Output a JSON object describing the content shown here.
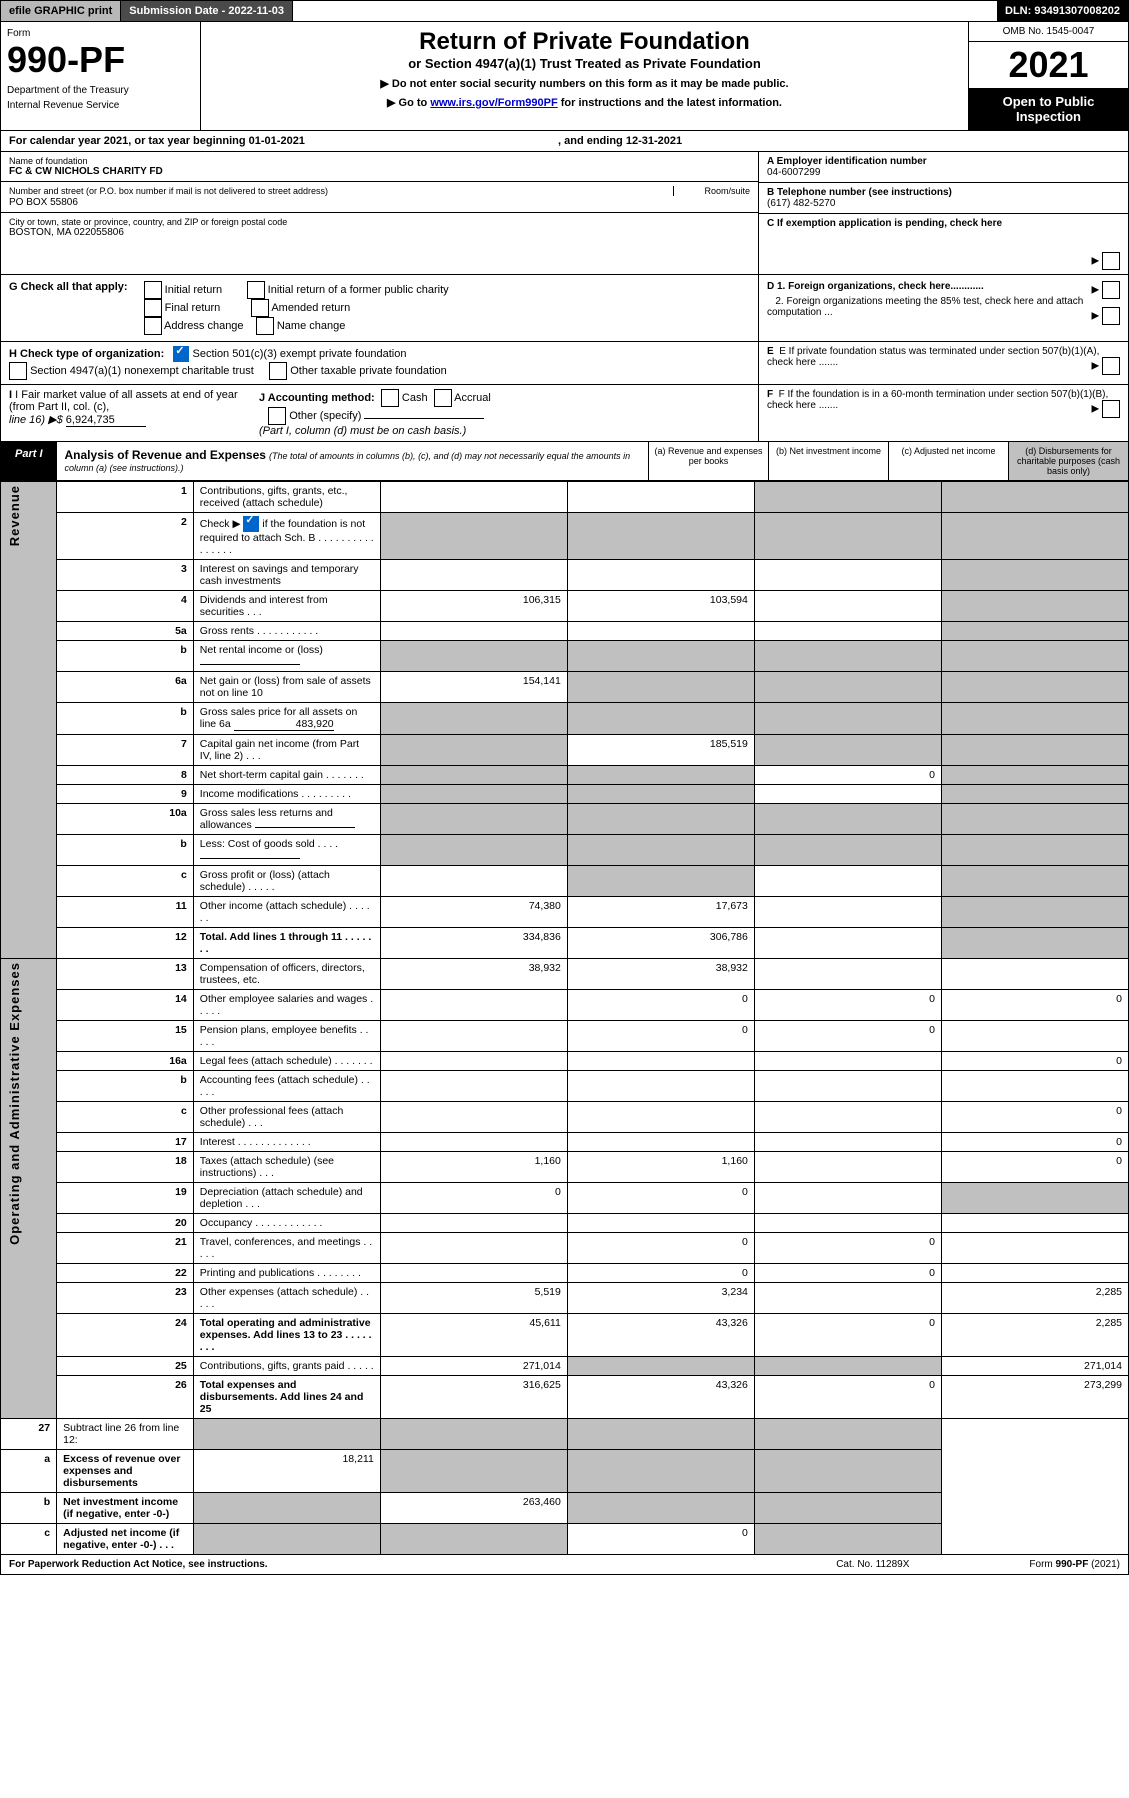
{
  "topbar": {
    "efile": "efile GRAPHIC print",
    "subdate_label": "Submission Date - ",
    "subdate": "2022-11-03",
    "dln_label": "DLN: ",
    "dln": "93491307008202"
  },
  "header": {
    "form_label": "Form",
    "form_num": "990-PF",
    "dept1": "Department of the Treasury",
    "dept2": "Internal Revenue Service",
    "title": "Return of Private Foundation",
    "subtitle": "or Section 4947(a)(1) Trust Treated as Private Foundation",
    "note1": "▶ Do not enter social security numbers on this form as it may be made public.",
    "note2_pre": "▶ Go to ",
    "note2_link": "www.irs.gov/Form990PF",
    "note2_post": " for instructions and the latest information.",
    "omb": "OMB No. 1545-0047",
    "year": "2021",
    "open_pub": "Open to Public Inspection"
  },
  "calyear": {
    "pre": "For calendar year 2021, or tax year beginning ",
    "begin": "01-01-2021",
    "mid": ", and ending ",
    "end": "12-31-2021"
  },
  "info": {
    "name_label": "Name of foundation",
    "name": "FC & CW NICHOLS CHARITY FD",
    "addr_label": "Number and street (or P.O. box number if mail is not delivered to street address)",
    "room_label": "Room/suite",
    "addr": "PO BOX 55806",
    "city_label": "City or town, state or province, country, and ZIP or foreign postal code",
    "city": "BOSTON, MA  022055806",
    "a_label": "A Employer identification number",
    "a_val": "04-6007299",
    "b_label": "B Telephone number (see instructions)",
    "b_val": "(617) 482-5270",
    "c_label": "C If exemption application is pending, check here"
  },
  "g": {
    "label": "G Check all that apply:",
    "o1": "Initial return",
    "o2": "Final return",
    "o3": "Address change",
    "o4": "Initial return of a former public charity",
    "o5": "Amended return",
    "o6": "Name change",
    "d1": "D 1. Foreign organizations, check here............",
    "d2": "2. Foreign organizations meeting the 85% test, check here and attach computation ..."
  },
  "h": {
    "label": "H Check type of organization:",
    "o1": "Section 501(c)(3) exempt private foundation",
    "o2": "Section 4947(a)(1) nonexempt charitable trust",
    "o3": "Other taxable private foundation",
    "e": "E  If private foundation status was terminated under section 507(b)(1)(A), check here ......."
  },
  "i": {
    "label": "I Fair market value of all assets at end of year (from Part II, col. (c),",
    "line": "line 16) ▶$ ",
    "val": "6,924,735",
    "j_label": "J Accounting method:",
    "j1": "Cash",
    "j2": "Accrual",
    "j3": "Other (specify)",
    "j_note": "(Part I, column (d) must be on cash basis.)",
    "f": "F  If the foundation is in a 60-month termination under section 507(b)(1)(B), check here ......."
  },
  "part1": {
    "badge": "Part I",
    "title": "Analysis of Revenue and Expenses",
    "note": "(The total of amounts in columns (b), (c), and (d) may not necessarily equal the amounts in column (a) (see instructions).)",
    "col_a": "(a)   Revenue and expenses per books",
    "col_b": "(b)   Net investment income",
    "col_c": "(c)   Adjusted net income",
    "col_d": "(d)   Disbursements for charitable purposes (cash basis only)"
  },
  "sidelabels": {
    "rev": "Revenue",
    "exp": "Operating and Administrative Expenses"
  },
  "rows": [
    {
      "n": "1",
      "d": "Contributions, gifts, grants, etc., received (attach schedule)",
      "a": "",
      "b": "",
      "c": "g",
      "dd": "g"
    },
    {
      "n": "2",
      "d": "Check ▶  ☑  if the foundation is not required to attach Sch. B  . . . . . . . . . . . . . . . .",
      "a": "g",
      "b": "g",
      "c": "g",
      "dd": "g",
      "checked": true
    },
    {
      "n": "3",
      "d": "Interest on savings and temporary cash investments",
      "a": "",
      "b": "",
      "c": "",
      "dd": "g"
    },
    {
      "n": "4",
      "d": "Dividends and interest from securities  .  .  .",
      "a": "106,315",
      "b": "103,594",
      "c": "",
      "dd": "g"
    },
    {
      "n": "5a",
      "d": "Gross rents  .  .  .  .  .  .  .  .  .  .  .",
      "a": "",
      "b": "",
      "c": "",
      "dd": "g"
    },
    {
      "n": "b",
      "d": "Net rental income or (loss)  ",
      "a": "g",
      "b": "g",
      "c": "g",
      "dd": "g",
      "ul": true
    },
    {
      "n": "6a",
      "d": "Net gain or (loss) from sale of assets not on line 10",
      "a": "154,141",
      "b": "g",
      "c": "g",
      "dd": "g"
    },
    {
      "n": "b",
      "d": "Gross sales price for all assets on line 6a",
      "a": "g",
      "b": "g",
      "c": "g",
      "dd": "g",
      "ul": true,
      "ulv": "483,920"
    },
    {
      "n": "7",
      "d": "Capital gain net income (from Part IV, line 2)  .  .  .",
      "a": "g",
      "b": "185,519",
      "c": "g",
      "dd": "g"
    },
    {
      "n": "8",
      "d": "Net short-term capital gain  .  .  .  .  .  .  .",
      "a": "g",
      "b": "g",
      "c": "0",
      "dd": "g"
    },
    {
      "n": "9",
      "d": "Income modifications  .  .  .  .  .  .  .  .  .",
      "a": "g",
      "b": "g",
      "c": "",
      "dd": "g"
    },
    {
      "n": "10a",
      "d": "Gross sales less returns and allowances",
      "a": "g",
      "b": "g",
      "c": "g",
      "dd": "g",
      "ul": true
    },
    {
      "n": "b",
      "d": "Less: Cost of goods sold  .  .  .  .",
      "a": "g",
      "b": "g",
      "c": "g",
      "dd": "g",
      "ul": true
    },
    {
      "n": "c",
      "d": "Gross profit or (loss) (attach schedule)  .  .  .  .  .",
      "a": "",
      "b": "g",
      "c": "",
      "dd": "g"
    },
    {
      "n": "11",
      "d": "Other income (attach schedule)  .  .  .  .  .  .",
      "a": "74,380",
      "b": "17,673",
      "c": "",
      "dd": "g"
    },
    {
      "n": "12",
      "d": "Total. Add lines 1 through 11  .  .  .  .  .  .  .",
      "a": "334,836",
      "b": "306,786",
      "c": "",
      "dd": "g",
      "bold": true
    }
  ],
  "exprows": [
    {
      "n": "13",
      "d": "Compensation of officers, directors, trustees, etc.",
      "a": "38,932",
      "b": "38,932",
      "c": "",
      "dd": ""
    },
    {
      "n": "14",
      "d": "Other employee salaries and wages  .  .  .  .  .",
      "a": "",
      "b": "0",
      "c": "0",
      "dd": "0"
    },
    {
      "n": "15",
      "d": "Pension plans, employee benefits  .  .  .  .  .",
      "a": "",
      "b": "0",
      "c": "0",
      "dd": ""
    },
    {
      "n": "16a",
      "d": "Legal fees (attach schedule)  .  .  .  .  .  .  .",
      "a": "",
      "b": "",
      "c": "",
      "dd": "0"
    },
    {
      "n": "b",
      "d": "Accounting fees (attach schedule)  .  .  .  .  .",
      "a": "",
      "b": "",
      "c": "",
      "dd": ""
    },
    {
      "n": "c",
      "d": "Other professional fees (attach schedule)  .  .  .",
      "a": "",
      "b": "",
      "c": "",
      "dd": "0"
    },
    {
      "n": "17",
      "d": "Interest  .  .  .  .  .  .  .  .  .  .  .  .  .",
      "a": "",
      "b": "",
      "c": "",
      "dd": "0"
    },
    {
      "n": "18",
      "d": "Taxes (attach schedule) (see instructions)  .  .  .",
      "a": "1,160",
      "b": "1,160",
      "c": "",
      "dd": "0"
    },
    {
      "n": "19",
      "d": "Depreciation (attach schedule) and depletion  .  .  .",
      "a": "0",
      "b": "0",
      "c": "",
      "dd": "g"
    },
    {
      "n": "20",
      "d": "Occupancy  .  .  .  .  .  .  .  .  .  .  .  .",
      "a": "",
      "b": "",
      "c": "",
      "dd": ""
    },
    {
      "n": "21",
      "d": "Travel, conferences, and meetings  .  .  .  .  .",
      "a": "",
      "b": "0",
      "c": "0",
      "dd": ""
    },
    {
      "n": "22",
      "d": "Printing and publications  .  .  .  .  .  .  .  .",
      "a": "",
      "b": "0",
      "c": "0",
      "dd": ""
    },
    {
      "n": "23",
      "d": "Other expenses (attach schedule)  .  .  .  .  .",
      "a": "5,519",
      "b": "3,234",
      "c": "",
      "dd": "2,285"
    },
    {
      "n": "24",
      "d": "Total operating and administrative expenses. Add lines 13 to 23  .  .  .  .  .  .  .  .",
      "a": "45,611",
      "b": "43,326",
      "c": "0",
      "dd": "2,285",
      "bold": true
    },
    {
      "n": "25",
      "d": "Contributions, gifts, grants paid  .  .  .  .  .",
      "a": "271,014",
      "b": "g",
      "c": "g",
      "dd": "271,014"
    },
    {
      "n": "26",
      "d": "Total expenses and disbursements. Add lines 24 and 25",
      "a": "316,625",
      "b": "43,326",
      "c": "0",
      "dd": "273,299",
      "bold": true
    }
  ],
  "finalrows": [
    {
      "n": "27",
      "d": "Subtract line 26 from line 12:",
      "a": "g",
      "b": "g",
      "c": "g",
      "dd": "g"
    },
    {
      "n": "a",
      "d": "Excess of revenue over expenses and disbursements",
      "a": "18,211",
      "b": "g",
      "c": "g",
      "dd": "g",
      "bold": true
    },
    {
      "n": "b",
      "d": "Net investment income (if negative, enter -0-)",
      "a": "g",
      "b": "263,460",
      "c": "g",
      "dd": "g",
      "bold": true
    },
    {
      "n": "c",
      "d": "Adjusted net income (if negative, enter -0-)  .  .  .",
      "a": "g",
      "b": "g",
      "c": "0",
      "dd": "g",
      "bold": true
    }
  ],
  "footer": {
    "l": "For Paperwork Reduction Act Notice, see instructions.",
    "c": "Cat. No. 11289X",
    "r": "Form 990-PF (2021)"
  }
}
